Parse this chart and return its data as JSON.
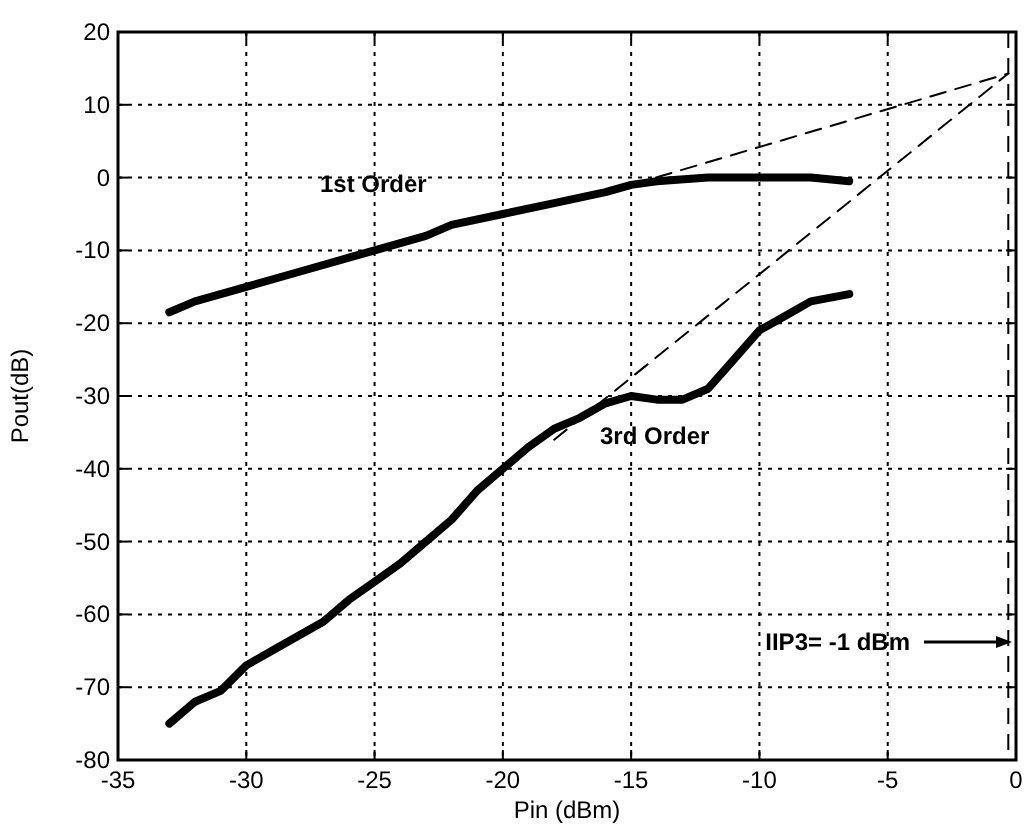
{
  "chart_data": {
    "type": "line",
    "xlabel": "Pin (dBm)",
    "ylabel": "Pout(dB)",
    "xlim": [
      -35,
      0
    ],
    "ylim": [
      -80,
      20
    ],
    "xticks": [
      -35,
      -30,
      -25,
      -20,
      -15,
      -10,
      -5,
      0
    ],
    "yticks": [
      -80,
      -70,
      -60,
      -50,
      -40,
      -30,
      -20,
      -10,
      0,
      10,
      20
    ],
    "grid": true,
    "marker": "none",
    "series": [
      {
        "color": "#000000",
        "line_style": "solid",
        "x": [
          -33,
          -32,
          -31,
          -30,
          -28,
          -26,
          -25,
          -23,
          -22,
          -20,
          -18,
          -16,
          -15,
          -14,
          -12,
          -10,
          -8,
          -6.5
        ],
        "values": [
          -18.5,
          -17,
          -16,
          -15,
          -13,
          -11,
          -10,
          -8,
          -6.5,
          -5,
          -3.5,
          -2,
          -1,
          -0.5,
          0,
          0,
          0,
          -0.5
        ]
      },
      {
        "color": "#000000",
        "line_style": "solid",
        "x": [
          -33,
          -32,
          -31,
          -30,
          -29,
          -28,
          -27,
          -26,
          -25,
          -24,
          -23,
          -22,
          -21,
          -20,
          -19,
          -18,
          -17,
          -16,
          -15,
          -14,
          -13,
          -12,
          -11,
          -10,
          -9,
          -8,
          -6.5
        ],
        "values": [
          -75,
          -72,
          -70.5,
          -67,
          -65,
          -63,
          -61,
          -58,
          -55.5,
          -53,
          -50,
          -47,
          -43,
          -40,
          -37,
          -34.5,
          -33,
          -31,
          -30,
          -30.5,
          -30.5,
          -29,
          -25,
          -21,
          -19,
          -17,
          -16
        ]
      },
      {
        "color": "#000000",
        "line_style": "dashed",
        "x": [
          -15,
          -0.3
        ],
        "values": [
          -1,
          14.3
        ]
      },
      {
        "color": "#000000",
        "line_style": "dashed",
        "x": [
          -18,
          -0.3
        ],
        "values": [
          -36,
          14.3
        ]
      }
    ],
    "ref_lines": [
      {
        "axis": "x",
        "value": -0.3,
        "line_style": "dashed",
        "color": "#000000"
      }
    ],
    "annotations": [
      "1st Order",
      "3rd Order",
      "IIP3= -1 dBm"
    ]
  }
}
